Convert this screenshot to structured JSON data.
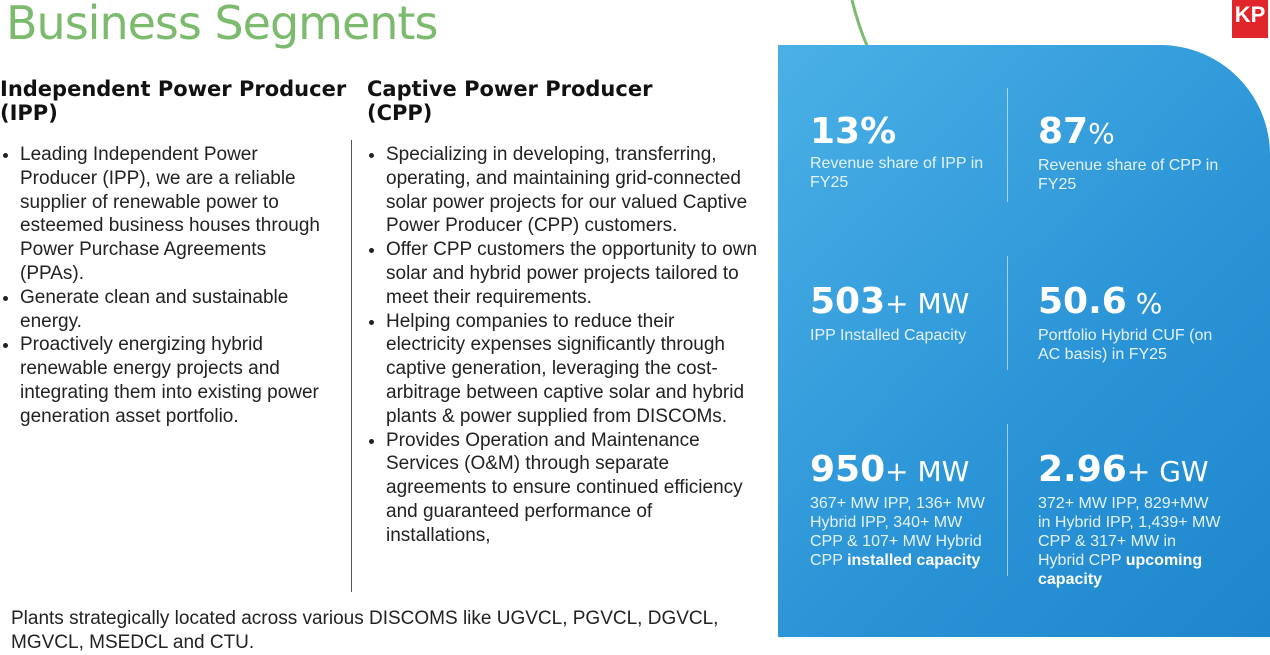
{
  "header": {
    "title": "Business Segments",
    "logo": "KP"
  },
  "ipp": {
    "heading": "Independent Power Producer (IPP)",
    "bullets": [
      "Leading Independent Power Producer (IPP), we are a reliable supplier of renewable power to esteemed business houses through Power Purchase Agreements (PPAs).",
      "Generate clean and sustainable energy.",
      "Proactively energizing hybrid renewable energy projects and integrating them into existing power generation asset portfolio."
    ]
  },
  "cpp": {
    "heading": "Captive Power Producer (CPP)",
    "bullets": [
      "Specializing in developing, transferring, operating, and maintaining grid-connected solar power projects for our valued Captive Power Producer (CPP) customers.",
      "Offer CPP customers the opportunity to own solar and hybrid power projects tailored to meet their requirements.",
      "Helping companies to reduce their electricity expenses significantly through captive generation, leveraging the cost-arbitrage between captive solar and hybrid plants & power supplied from DISCOMs.",
      "Provides Operation and Maintenance Services (O&M) through separate agreements to ensure continued efficiency and guaranteed performance of installations,"
    ]
  },
  "footer": "Plants strategically located across various DISCOMS like UGVCL, PGVCL, DGVCL, MGVCL, MSEDCL and CTU.",
  "stats": [
    {
      "number": "13%",
      "desc": "Revenue share of IPP in FY25"
    },
    {
      "number": "87",
      "unit": "%",
      "desc": "Revenue share of CPP in FY25"
    },
    {
      "number": "503",
      "unit": "+ MW",
      "desc": "IPP Installed Capacity"
    },
    {
      "number": "50.6",
      "unit": " %",
      "desc": "Portfolio Hybrid CUF (on AC basis) in FY25"
    },
    {
      "number": "950",
      "unit": "+ MW",
      "desc": "367+ MW IPP, 136+ MW Hybrid IPP, 340+ MW CPP & 107+ MW Hybrid CPP ",
      "desc_bold": "installed capacity"
    },
    {
      "number": "2.96",
      "unit": "+ GW",
      "desc": "372+ MW IPP, 829+MW in Hybrid IPP, 1,439+ MW CPP & 317+ MW in Hybrid CPP ",
      "desc_bold": "upcoming capacity"
    }
  ]
}
